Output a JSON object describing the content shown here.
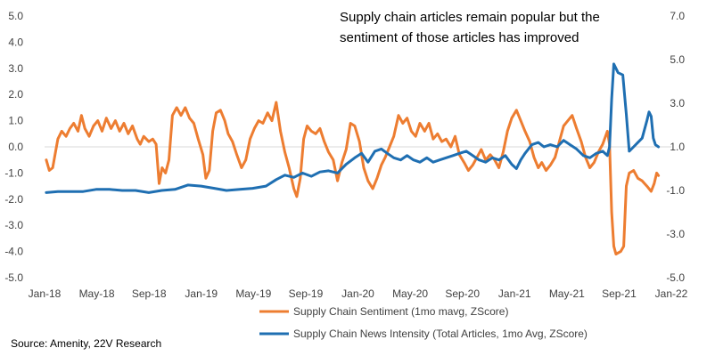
{
  "chart_data": {
    "type": "line",
    "title_lines": [
      "Supply chain articles remain popular but the",
      "sentiment of those articles has improved"
    ],
    "source": "Source: Amenity, 22V Research",
    "x_labels": [
      "Jan-18",
      "May-18",
      "Sep-18",
      "Jan-19",
      "May-19",
      "Sep-19",
      "Jan-20",
      "May-20",
      "Sep-20",
      "Jan-21",
      "May-21",
      "Sep-21",
      "Jan-22"
    ],
    "x_range": [
      "2018-01-01",
      "2022-01-01"
    ],
    "y_left": {
      "ticks": [
        "-5.0",
        "-4.0",
        "-3.0",
        "-2.0",
        "-1.0",
        "0.0",
        "1.0",
        "2.0",
        "3.0",
        "4.0",
        "5.0"
      ],
      "min": -5,
      "max": 5
    },
    "y_right": {
      "ticks": [
        "-5.0",
        "-3.0",
        "-1.0",
        "1.0",
        "3.0",
        "5.0",
        "7.0"
      ],
      "min": -5,
      "max": 7
    },
    "series": [
      {
        "name": "Supply Chain Sentiment (1mo mavg, ZScore)",
        "axis": "left",
        "color": "#ED7D31",
        "points": [
          [
            "2018-01-05",
            -0.5
          ],
          [
            "2018-01-12",
            -0.9
          ],
          [
            "2018-01-20",
            -0.8
          ],
          [
            "2018-02-01",
            0.3
          ],
          [
            "2018-02-10",
            0.6
          ],
          [
            "2018-02-20",
            0.4
          ],
          [
            "2018-03-01",
            0.7
          ],
          [
            "2018-03-10",
            0.9
          ],
          [
            "2018-03-20",
            0.6
          ],
          [
            "2018-03-28",
            1.2
          ],
          [
            "2018-04-05",
            0.7
          ],
          [
            "2018-04-15",
            0.4
          ],
          [
            "2018-04-25",
            0.8
          ],
          [
            "2018-05-05",
            1.0
          ],
          [
            "2018-05-15",
            0.6
          ],
          [
            "2018-05-25",
            1.1
          ],
          [
            "2018-06-05",
            0.7
          ],
          [
            "2018-06-15",
            1.0
          ],
          [
            "2018-06-25",
            0.6
          ],
          [
            "2018-07-05",
            0.9
          ],
          [
            "2018-07-15",
            0.5
          ],
          [
            "2018-07-25",
            0.8
          ],
          [
            "2018-08-05",
            0.3
          ],
          [
            "2018-08-12",
            0.1
          ],
          [
            "2018-08-20",
            0.4
          ],
          [
            "2018-09-01",
            0.2
          ],
          [
            "2018-09-10",
            0.3
          ],
          [
            "2018-09-18",
            0.1
          ],
          [
            "2018-09-25",
            -1.4
          ],
          [
            "2018-10-02",
            -0.8
          ],
          [
            "2018-10-10",
            -1.0
          ],
          [
            "2018-10-18",
            -0.5
          ],
          [
            "2018-10-26",
            1.2
          ],
          [
            "2018-11-05",
            1.5
          ],
          [
            "2018-11-15",
            1.2
          ],
          [
            "2018-11-25",
            1.5
          ],
          [
            "2018-12-05",
            1.1
          ],
          [
            "2018-12-15",
            0.9
          ],
          [
            "2018-12-25",
            0.3
          ],
          [
            "2019-01-05",
            -0.3
          ],
          [
            "2019-01-12",
            -1.2
          ],
          [
            "2019-01-20",
            -0.9
          ],
          [
            "2019-01-28",
            0.6
          ],
          [
            "2019-02-05",
            1.3
          ],
          [
            "2019-02-15",
            1.4
          ],
          [
            "2019-02-25",
            1.0
          ],
          [
            "2019-03-05",
            0.5
          ],
          [
            "2019-03-15",
            0.2
          ],
          [
            "2019-03-25",
            -0.3
          ],
          [
            "2019-04-05",
            -0.8
          ],
          [
            "2019-04-15",
            -0.5
          ],
          [
            "2019-04-25",
            0.3
          ],
          [
            "2019-05-05",
            0.7
          ],
          [
            "2019-05-15",
            1.0
          ],
          [
            "2019-05-25",
            0.9
          ],
          [
            "2019-06-05",
            1.3
          ],
          [
            "2019-06-15",
            1.0
          ],
          [
            "2019-06-25",
            1.7
          ],
          [
            "2019-07-05",
            0.6
          ],
          [
            "2019-07-15",
            -0.2
          ],
          [
            "2019-07-25",
            -0.8
          ],
          [
            "2019-08-05",
            -1.6
          ],
          [
            "2019-08-12",
            -1.9
          ],
          [
            "2019-08-20",
            -1.2
          ],
          [
            "2019-08-28",
            0.3
          ],
          [
            "2019-09-05",
            0.8
          ],
          [
            "2019-09-15",
            0.6
          ],
          [
            "2019-09-25",
            0.5
          ],
          [
            "2019-10-05",
            0.7
          ],
          [
            "2019-10-15",
            0.2
          ],
          [
            "2019-10-25",
            -0.2
          ],
          [
            "2019-11-05",
            -0.5
          ],
          [
            "2019-11-15",
            -1.3
          ],
          [
            "2019-11-25",
            -0.6
          ],
          [
            "2019-12-05",
            -0.1
          ],
          [
            "2019-12-15",
            0.9
          ],
          [
            "2019-12-25",
            0.8
          ],
          [
            "2020-01-05",
            0.2
          ],
          [
            "2020-01-15",
            -0.8
          ],
          [
            "2020-01-25",
            -1.3
          ],
          [
            "2020-02-05",
            -1.6
          ],
          [
            "2020-02-15",
            -1.2
          ],
          [
            "2020-02-25",
            -0.7
          ],
          [
            "2020-03-05",
            -0.4
          ],
          [
            "2020-03-15",
            0.0
          ],
          [
            "2020-03-25",
            0.4
          ],
          [
            "2020-04-05",
            1.2
          ],
          [
            "2020-04-15",
            0.9
          ],
          [
            "2020-04-25",
            1.1
          ],
          [
            "2020-05-05",
            0.6
          ],
          [
            "2020-05-15",
            0.4
          ],
          [
            "2020-05-25",
            0.9
          ],
          [
            "2020-06-05",
            0.6
          ],
          [
            "2020-06-15",
            0.9
          ],
          [
            "2020-06-25",
            0.3
          ],
          [
            "2020-07-05",
            0.5
          ],
          [
            "2020-07-15",
            0.2
          ],
          [
            "2020-07-25",
            0.3
          ],
          [
            "2020-08-05",
            0.0
          ],
          [
            "2020-08-15",
            0.4
          ],
          [
            "2020-08-25",
            -0.3
          ],
          [
            "2020-09-05",
            -0.6
          ],
          [
            "2020-09-15",
            -0.9
          ],
          [
            "2020-09-25",
            -0.7
          ],
          [
            "2020-10-05",
            -0.4
          ],
          [
            "2020-10-15",
            -0.1
          ],
          [
            "2020-10-25",
            -0.5
          ],
          [
            "2020-11-05",
            -0.3
          ],
          [
            "2020-11-15",
            -0.5
          ],
          [
            "2020-11-25",
            -0.8
          ],
          [
            "2020-12-05",
            -0.2
          ],
          [
            "2020-12-15",
            0.6
          ],
          [
            "2020-12-25",
            1.1
          ],
          [
            "2021-01-05",
            1.4
          ],
          [
            "2021-01-15",
            1.0
          ],
          [
            "2021-01-25",
            0.6
          ],
          [
            "2021-02-05",
            0.2
          ],
          [
            "2021-02-15",
            -0.4
          ],
          [
            "2021-02-25",
            -0.8
          ],
          [
            "2021-03-05",
            -0.6
          ],
          [
            "2021-03-15",
            -0.9
          ],
          [
            "2021-03-25",
            -0.7
          ],
          [
            "2021-04-05",
            -0.4
          ],
          [
            "2021-04-15",
            0.2
          ],
          [
            "2021-04-25",
            0.8
          ],
          [
            "2021-05-05",
            1.0
          ],
          [
            "2021-05-15",
            1.2
          ],
          [
            "2021-05-25",
            0.7
          ],
          [
            "2021-06-05",
            0.2
          ],
          [
            "2021-06-15",
            -0.4
          ],
          [
            "2021-06-25",
            -0.8
          ],
          [
            "2021-07-05",
            -0.6
          ],
          [
            "2021-07-15",
            -0.2
          ],
          [
            "2021-07-25",
            0.1
          ],
          [
            "2021-08-05",
            0.6
          ],
          [
            "2021-08-10",
            0.1
          ],
          [
            "2021-08-15",
            -2.5
          ],
          [
            "2021-08-20",
            -3.8
          ],
          [
            "2021-08-25",
            -4.1
          ],
          [
            "2021-09-05",
            -4.0
          ],
          [
            "2021-09-12",
            -3.8
          ],
          [
            "2021-09-18",
            -1.5
          ],
          [
            "2021-09-25",
            -1.0
          ],
          [
            "2021-10-05",
            -0.9
          ],
          [
            "2021-10-15",
            -1.2
          ],
          [
            "2021-10-25",
            -1.3
          ],
          [
            "2021-11-05",
            -1.5
          ],
          [
            "2021-11-15",
            -1.7
          ],
          [
            "2021-11-22",
            -1.4
          ],
          [
            "2021-11-28",
            -1.0
          ],
          [
            "2021-12-02",
            -1.1
          ]
        ]
      },
      {
        "name": "Supply Chain News Intensity (Total Articles, 1mo Avg, ZScore)",
        "axis": "right",
        "color": "#1F6FB2",
        "points": [
          [
            "2018-01-05",
            -1.1
          ],
          [
            "2018-02-01",
            -1.05
          ],
          [
            "2018-03-01",
            -1.05
          ],
          [
            "2018-04-01",
            -1.05
          ],
          [
            "2018-05-01",
            -0.95
          ],
          [
            "2018-06-01",
            -0.95
          ],
          [
            "2018-07-01",
            -1.0
          ],
          [
            "2018-08-01",
            -1.0
          ],
          [
            "2018-09-01",
            -1.1
          ],
          [
            "2018-10-01",
            -1.0
          ],
          [
            "2018-11-01",
            -0.95
          ],
          [
            "2018-12-01",
            -0.75
          ],
          [
            "2019-01-01",
            -0.8
          ],
          [
            "2019-02-01",
            -0.9
          ],
          [
            "2019-03-01",
            -1.0
          ],
          [
            "2019-04-01",
            -0.95
          ],
          [
            "2019-05-01",
            -0.9
          ],
          [
            "2019-06-01",
            -0.8
          ],
          [
            "2019-06-25",
            -0.5
          ],
          [
            "2019-07-15",
            -0.3
          ],
          [
            "2019-08-05",
            -0.4
          ],
          [
            "2019-08-25",
            -0.2
          ],
          [
            "2019-09-15",
            -0.35
          ],
          [
            "2019-10-05",
            -0.15
          ],
          [
            "2019-10-25",
            -0.1
          ],
          [
            "2019-11-15",
            -0.2
          ],
          [
            "2019-12-05",
            0.2
          ],
          [
            "2019-12-25",
            0.5
          ],
          [
            "2020-01-10",
            0.7
          ],
          [
            "2020-01-25",
            0.3
          ],
          [
            "2020-02-10",
            0.8
          ],
          [
            "2020-02-25",
            0.9
          ],
          [
            "2020-03-10",
            0.7
          ],
          [
            "2020-03-25",
            0.5
          ],
          [
            "2020-04-10",
            0.4
          ],
          [
            "2020-04-25",
            0.6
          ],
          [
            "2020-05-10",
            0.4
          ],
          [
            "2020-05-25",
            0.3
          ],
          [
            "2020-06-10",
            0.5
          ],
          [
            "2020-06-25",
            0.3
          ],
          [
            "2020-07-10",
            0.4
          ],
          [
            "2020-07-25",
            0.5
          ],
          [
            "2020-08-10",
            0.6
          ],
          [
            "2020-08-25",
            0.7
          ],
          [
            "2020-09-10",
            0.8
          ],
          [
            "2020-09-25",
            0.6
          ],
          [
            "2020-10-10",
            0.4
          ],
          [
            "2020-10-25",
            0.3
          ],
          [
            "2020-11-10",
            0.5
          ],
          [
            "2020-11-25",
            0.4
          ],
          [
            "2020-12-10",
            0.6
          ],
          [
            "2020-12-25",
            0.2
          ],
          [
            "2021-01-05",
            0.0
          ],
          [
            "2021-01-15",
            0.4
          ],
          [
            "2021-01-25",
            0.7
          ],
          [
            "2021-02-10",
            1.1
          ],
          [
            "2021-02-25",
            1.2
          ],
          [
            "2021-03-10",
            1.0
          ],
          [
            "2021-03-25",
            1.1
          ],
          [
            "2021-04-10",
            1.0
          ],
          [
            "2021-04-25",
            1.3
          ],
          [
            "2021-05-10",
            1.1
          ],
          [
            "2021-05-25",
            0.9
          ],
          [
            "2021-06-10",
            0.6
          ],
          [
            "2021-06-25",
            0.5
          ],
          [
            "2021-07-10",
            0.7
          ],
          [
            "2021-07-25",
            0.8
          ],
          [
            "2021-08-05",
            0.6
          ],
          [
            "2021-08-10",
            1.0
          ],
          [
            "2021-08-15",
            3.2
          ],
          [
            "2021-08-20",
            4.8
          ],
          [
            "2021-08-30",
            4.4
          ],
          [
            "2021-09-10",
            4.3
          ],
          [
            "2021-09-18",
            2.5
          ],
          [
            "2021-09-25",
            0.8
          ],
          [
            "2021-10-05",
            1.0
          ],
          [
            "2021-10-15",
            1.2
          ],
          [
            "2021-10-25",
            1.4
          ],
          [
            "2021-11-05",
            2.2
          ],
          [
            "2021-11-10",
            2.6
          ],
          [
            "2021-11-15",
            2.4
          ],
          [
            "2021-11-20",
            1.4
          ],
          [
            "2021-11-25",
            1.1
          ],
          [
            "2021-12-02",
            1.0
          ]
        ]
      }
    ],
    "legend_position": "bottom",
    "grid": false
  }
}
